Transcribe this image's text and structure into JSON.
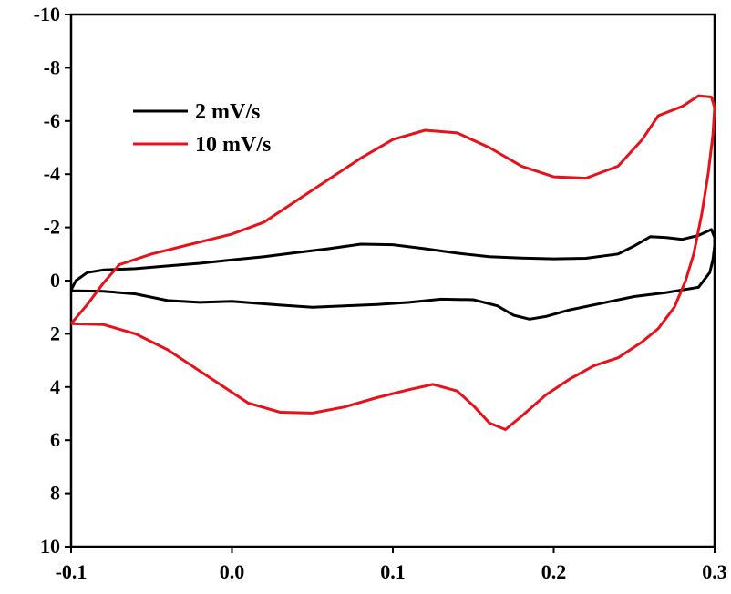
{
  "chart_data": {
    "type": "line",
    "title": "",
    "xlabel": "",
    "ylabel": "",
    "xlim": [
      -0.1,
      0.3
    ],
    "ylim": [
      -10,
      10
    ],
    "y_inverted": true,
    "grid": false,
    "legend_position": "top-left",
    "x_ticks": [
      -0.1,
      0.0,
      0.1,
      0.2,
      0.3
    ],
    "x_tick_labels": [
      "-0.1",
      "0.0",
      "0.1",
      "0.2",
      "0.3"
    ],
    "y_ticks": [
      -10,
      -8,
      -6,
      -4,
      -2,
      0,
      2,
      4,
      6,
      8,
      10
    ],
    "y_tick_labels": [
      "-10",
      "-8",
      "-6",
      "-4",
      "-2",
      "0",
      "2",
      "4",
      "6",
      "8",
      "10"
    ],
    "series": [
      {
        "name": "2 mV/s",
        "color": "#000000",
        "points": [
          [
            -0.1,
            0.35
          ],
          [
            -0.097,
            0.0
          ],
          [
            -0.09,
            -0.3
          ],
          [
            -0.08,
            -0.4
          ],
          [
            -0.06,
            -0.45
          ],
          [
            -0.04,
            -0.55
          ],
          [
            -0.02,
            -0.65
          ],
          [
            0.0,
            -0.78
          ],
          [
            0.02,
            -0.9
          ],
          [
            0.04,
            -1.05
          ],
          [
            0.06,
            -1.2
          ],
          [
            0.08,
            -1.37
          ],
          [
            0.1,
            -1.35
          ],
          [
            0.12,
            -1.2
          ],
          [
            0.14,
            -1.03
          ],
          [
            0.16,
            -0.9
          ],
          [
            0.18,
            -0.85
          ],
          [
            0.2,
            -0.82
          ],
          [
            0.22,
            -0.84
          ],
          [
            0.24,
            -1.0
          ],
          [
            0.25,
            -1.3
          ],
          [
            0.26,
            -1.65
          ],
          [
            0.27,
            -1.62
          ],
          [
            0.28,
            -1.55
          ],
          [
            0.29,
            -1.7
          ],
          [
            0.298,
            -1.92
          ],
          [
            0.3,
            -1.62
          ],
          [
            0.3,
            -1.3
          ],
          [
            0.299,
            -0.8
          ],
          [
            0.297,
            -0.3
          ],
          [
            0.29,
            0.25
          ],
          [
            0.27,
            0.45
          ],
          [
            0.25,
            0.6
          ],
          [
            0.23,
            0.85
          ],
          [
            0.21,
            1.1
          ],
          [
            0.195,
            1.35
          ],
          [
            0.185,
            1.45
          ],
          [
            0.175,
            1.3
          ],
          [
            0.165,
            0.95
          ],
          [
            0.15,
            0.72
          ],
          [
            0.13,
            0.7
          ],
          [
            0.11,
            0.82
          ],
          [
            0.09,
            0.9
          ],
          [
            0.07,
            0.95
          ],
          [
            0.05,
            1.0
          ],
          [
            0.03,
            0.92
          ],
          [
            0.0,
            0.78
          ],
          [
            -0.02,
            0.82
          ],
          [
            -0.04,
            0.75
          ],
          [
            -0.06,
            0.5
          ],
          [
            -0.08,
            0.4
          ],
          [
            -0.1,
            0.38
          ]
        ]
      },
      {
        "name": "10 mV/s",
        "color": "#e8111a",
        "points": [
          [
            -0.1,
            1.62
          ],
          [
            -0.09,
            0.9
          ],
          [
            -0.08,
            0.1
          ],
          [
            -0.07,
            -0.6
          ],
          [
            -0.05,
            -1.0
          ],
          [
            -0.03,
            -1.3
          ],
          [
            -0.01,
            -1.6
          ],
          [
            0.0,
            -1.75
          ],
          [
            0.02,
            -2.2
          ],
          [
            0.04,
            -3.0
          ],
          [
            0.06,
            -3.8
          ],
          [
            0.08,
            -4.6
          ],
          [
            0.1,
            -5.3
          ],
          [
            0.12,
            -5.65
          ],
          [
            0.14,
            -5.55
          ],
          [
            0.16,
            -5.0
          ],
          [
            0.18,
            -4.3
          ],
          [
            0.2,
            -3.9
          ],
          [
            0.22,
            -3.85
          ],
          [
            0.24,
            -4.3
          ],
          [
            0.255,
            -5.3
          ],
          [
            0.265,
            -6.2
          ],
          [
            0.28,
            -6.55
          ],
          [
            0.29,
            -6.95
          ],
          [
            0.298,
            -6.9
          ],
          [
            0.3,
            -6.5
          ],
          [
            0.299,
            -5.5
          ],
          [
            0.296,
            -4.0
          ],
          [
            0.292,
            -2.5
          ],
          [
            0.287,
            -1.0
          ],
          [
            0.282,
            0.0
          ],
          [
            0.275,
            1.0
          ],
          [
            0.265,
            1.8
          ],
          [
            0.255,
            2.3
          ],
          [
            0.24,
            2.9
          ],
          [
            0.225,
            3.2
          ],
          [
            0.21,
            3.7
          ],
          [
            0.195,
            4.3
          ],
          [
            0.18,
            5.1
          ],
          [
            0.17,
            5.6
          ],
          [
            0.16,
            5.35
          ],
          [
            0.15,
            4.7
          ],
          [
            0.14,
            4.15
          ],
          [
            0.125,
            3.9
          ],
          [
            0.11,
            4.1
          ],
          [
            0.09,
            4.4
          ],
          [
            0.07,
            4.75
          ],
          [
            0.05,
            4.98
          ],
          [
            0.03,
            4.95
          ],
          [
            0.01,
            4.6
          ],
          [
            0.0,
            4.2
          ],
          [
            -0.02,
            3.4
          ],
          [
            -0.04,
            2.6
          ],
          [
            -0.06,
            2.0
          ],
          [
            -0.08,
            1.65
          ],
          [
            -0.1,
            1.62
          ]
        ]
      }
    ]
  }
}
